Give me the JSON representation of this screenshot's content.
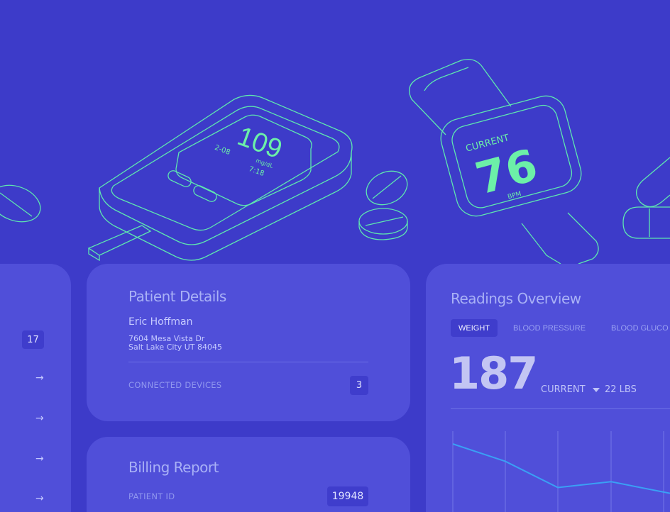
{
  "illustration": {
    "glucose_meter": {
      "value": "109",
      "date": "2-08",
      "unit": "mg/dL",
      "time": "7:18"
    },
    "watch": {
      "label": "CURRENT",
      "value": "76",
      "unit": "BPM"
    },
    "stroke_color": "#5ee6b0"
  },
  "sidebar": {
    "badge": "17",
    "arrows": [
      "→",
      "→",
      "→",
      "→"
    ]
  },
  "patient_details": {
    "title": "Patient Details",
    "name": "Eric Hoffman",
    "address_line1": "7604 Mesa Vista Dr",
    "address_line2": "Salt Lake City UT 84045",
    "connected_devices_label": "CONNECTED DEVICES",
    "connected_devices_count": "3"
  },
  "billing_report": {
    "title": "Billing Report",
    "patient_id_label": "PATIENT ID",
    "patient_id": "19948"
  },
  "readings": {
    "title": "Readings Overview",
    "tabs": [
      {
        "label": "WEIGHT",
        "active": true
      },
      {
        "label": "BLOOD PRESSURE"
      },
      {
        "label": "BLOOD GLUCO"
      }
    ],
    "value": "187",
    "current_label": "CURRENT",
    "change_icon": "triangle-down-icon",
    "change": "22 LBS",
    "line_color": "#3aa0f5",
    "chart_values": [
      206,
      200,
      191,
      193,
      189
    ]
  }
}
